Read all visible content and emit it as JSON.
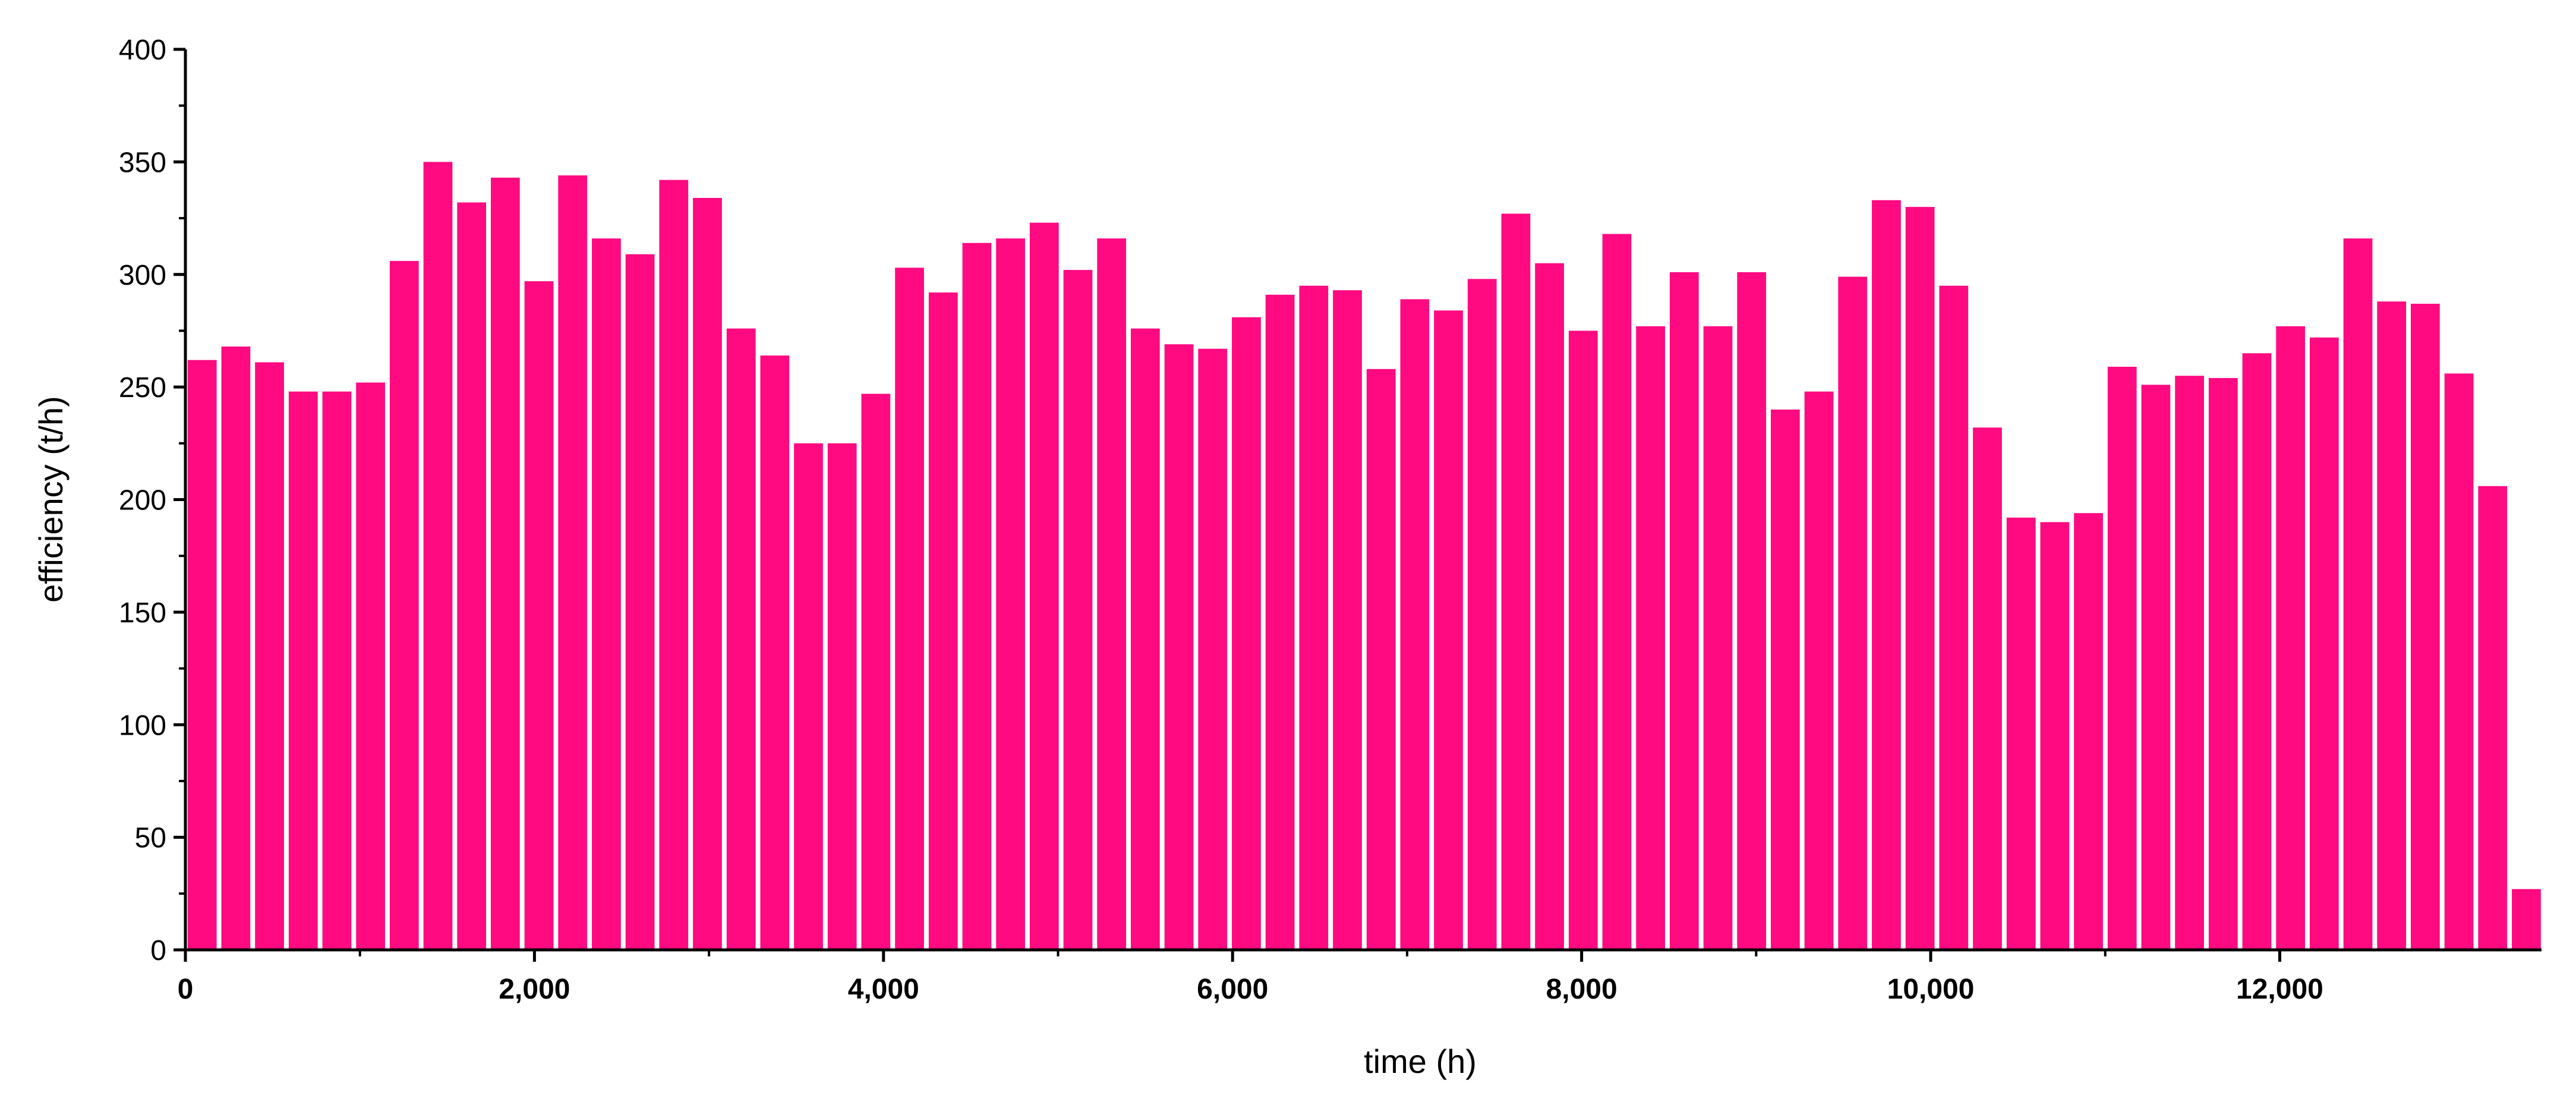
{
  "chart_data": {
    "type": "bar",
    "x_label": "time (h)",
    "y_label": "efficiency (t/h)",
    "color": "#ff0a80",
    "x": [
      96,
      289,
      482,
      675,
      868,
      1061,
      1254,
      1447,
      1640,
      1833,
      2026,
      2219,
      2412,
      2605,
      2798,
      2991,
      3184,
      3377,
      3570,
      3763,
      3956,
      4149,
      4342,
      4535,
      4728,
      4921,
      5114,
      5307,
      5500,
      5693,
      5886,
      6079,
      6272,
      6465,
      6658,
      6851,
      7044,
      7237,
      7430,
      7623,
      7816,
      8009,
      8202,
      8395,
      8588,
      8781,
      8974,
      9167,
      9360,
      9553,
      9746,
      9939,
      10132,
      10325,
      10518,
      10711,
      10904,
      11097,
      11290,
      11483,
      11676,
      11869,
      12062,
      12255,
      12448,
      12641,
      12834,
      13027,
      13220,
      13413
    ],
    "values": [
      262,
      268,
      261,
      248,
      248,
      252,
      306,
      350,
      332,
      343,
      297,
      344,
      316,
      309,
      342,
      334,
      276,
      264,
      225,
      225,
      247,
      303,
      292,
      314,
      316,
      323,
      302,
      316,
      276,
      269,
      267,
      281,
      291,
      295,
      293,
      258,
      289,
      284,
      298,
      327,
      305,
      275,
      318,
      277,
      301,
      277,
      301,
      240,
      248,
      299,
      333,
      330,
      295,
      232,
      192,
      190,
      194,
      259,
      251,
      255,
      254,
      265,
      277,
      272,
      316,
      288,
      287,
      256,
      206,
      27
    ],
    "xlim": [
      0,
      13500
    ],
    "xticks": [
      0,
      {
        "value": 2000,
        "label": "2,000"
      },
      {
        "value": 4000,
        "label": "4,000"
      },
      {
        "value": 6000,
        "label": "6,000"
      },
      {
        "value": 8000,
        "label": "8,000"
      },
      {
        "value": 10000,
        "label": "10,000"
      },
      {
        "value": 12000,
        "label": "12,000"
      }
    ],
    "ylim": [
      0,
      400
    ],
    "yticks": [
      0,
      50,
      100,
      150,
      200,
      250,
      300,
      350,
      400
    ]
  }
}
